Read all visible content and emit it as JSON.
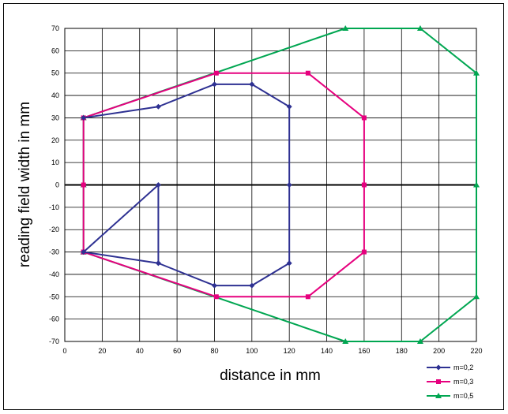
{
  "chart_data": {
    "type": "line",
    "title": "",
    "xlabel": "distance in mm",
    "ylabel": "reading field width in mm",
    "xlim": [
      0,
      220
    ],
    "ylim": [
      -70,
      70
    ],
    "x_ticks": [
      0,
      20,
      40,
      60,
      80,
      100,
      120,
      140,
      160,
      180,
      200,
      220
    ],
    "y_ticks": [
      -70,
      -60,
      -50,
      -40,
      -30,
      -20,
      -10,
      0,
      10,
      20,
      30,
      40,
      50,
      60,
      70
    ],
    "grid": true,
    "legend_position": "bottom-right",
    "series": [
      {
        "name": "m=0,2",
        "color": "#2e3192",
        "marker": "diamond",
        "x": [
          10,
          50,
          80,
          100,
          120,
          120,
          120,
          100,
          80,
          50,
          50,
          10,
          50
        ],
        "y": [
          30,
          35,
          45,
          45,
          35,
          0,
          -35,
          -45,
          -45,
          -35,
          0,
          -30,
          -35
        ]
      },
      {
        "name": "m=0,3",
        "color": "#e6007e",
        "marker": "square",
        "x": [
          10,
          10,
          10,
          81,
          130,
          160,
          160,
          160,
          130,
          81,
          10
        ],
        "y": [
          -30,
          0,
          30,
          50,
          50,
          30,
          0,
          -30,
          -50,
          -50,
          -30
        ]
      },
      {
        "name": "m=0,5",
        "color": "#00a651",
        "marker": "triangle",
        "x": [
          10,
          10,
          10,
          150,
          190,
          220,
          220,
          220,
          190,
          150,
          10
        ],
        "y": [
          -30,
          0,
          30,
          70,
          70,
          50,
          0,
          -50,
          -70,
          -70,
          -30
        ]
      }
    ]
  }
}
